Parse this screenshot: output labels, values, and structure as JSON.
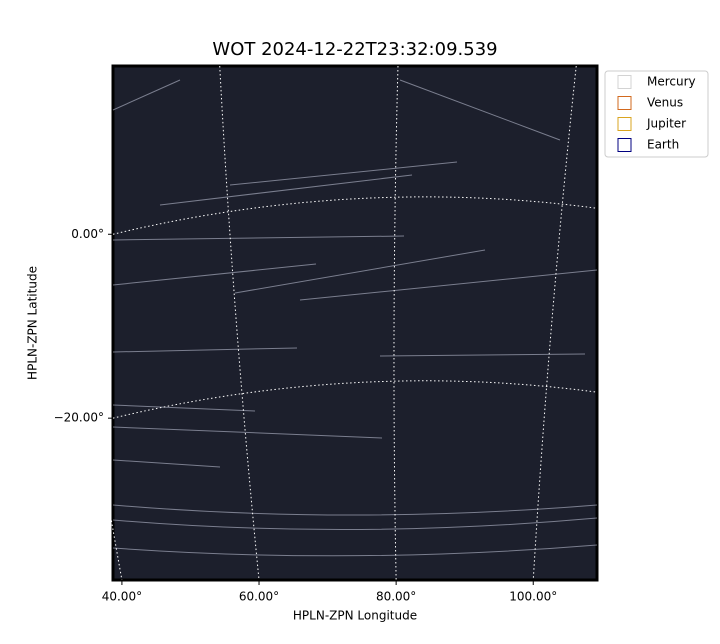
{
  "chart_data": {
    "type": "image",
    "title": "WOT 2024-12-22T23:32:09.539",
    "x_label": "HPLN-ZPN Longitude",
    "y_label": "HPLN-ZPN Latitude",
    "xlim": [
      38.7,
      109.3
    ],
    "ylim": [
      -37.6,
      18.3
    ],
    "xticks": [
      {
        "value": 40,
        "label": "40.00°"
      },
      {
        "value": 60,
        "label": "60.00°"
      },
      {
        "value": 80,
        "label": "80.00°"
      },
      {
        "value": 100,
        "label": "100.00°"
      }
    ],
    "yticks": [
      {
        "value": 0,
        "label": "0.00°"
      },
      {
        "value": -20,
        "label": "−20.00°"
      }
    ],
    "grid": true,
    "legend_position": "outside-upper-right",
    "series": [
      {
        "name": "Mercury",
        "color": "#d3d3d3"
      },
      {
        "name": "Venus",
        "color": "#d2691e"
      },
      {
        "name": "Jupiter",
        "color": "#daa520"
      },
      {
        "name": "Earth",
        "color": "#000080"
      }
    ]
  }
}
